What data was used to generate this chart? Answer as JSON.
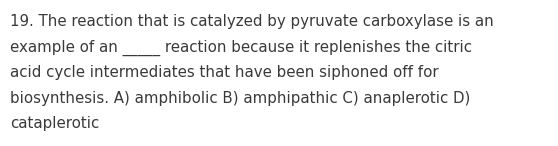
{
  "text_line1": "19. The reaction that is catalyzed by pyruvate carboxylase is an",
  "text_line2": "example of an _____ reaction because it replenishes the citric",
  "text_line3": "acid cycle intermediates that have been siphoned off for",
  "text_line4": "biosynthesis. A) amphibolic B) amphipathic C) anaplerotic D)",
  "text_line5": "cataplerotic",
  "background_color": "#ffffff",
  "text_color": "#3a3a3a",
  "font_size": 10.8,
  "font_family": "DejaVu Sans",
  "fig_width": 5.58,
  "fig_height": 1.46,
  "dpi": 100
}
